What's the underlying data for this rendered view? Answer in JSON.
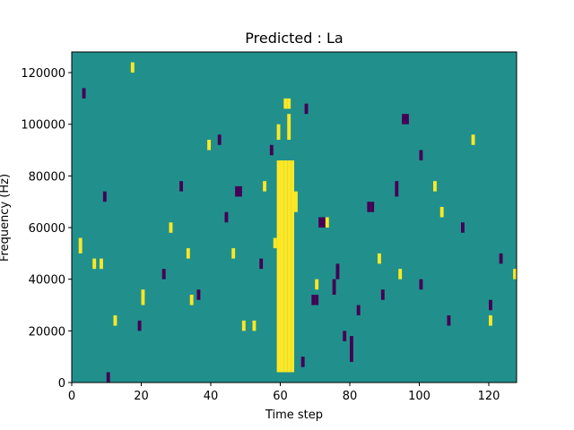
{
  "chart_data": {
    "type": "heatmap",
    "title": "Predicted : La",
    "xlabel": "Time step",
    "ylabel": "Frequency (Hz)",
    "xlim": [
      0,
      128
    ],
    "ylim": [
      0,
      128000
    ],
    "x_ticks": [
      0,
      20,
      40,
      60,
      80,
      100,
      120
    ],
    "y_ticks": [
      0,
      20000,
      40000,
      60000,
      80000,
      100000,
      120000
    ],
    "grid": false,
    "legend": "none",
    "colors": {
      "background": "#21908d",
      "low": "#440154",
      "high": "#fde725"
    },
    "cell": {
      "dx": 1,
      "dy": 2000
    },
    "high_cells": [
      [
        59,
        4000,
        86000
      ],
      [
        60,
        4000,
        86000
      ],
      [
        61,
        4000,
        86000
      ],
      [
        62,
        4000,
        86000
      ],
      [
        63,
        4000,
        86000
      ],
      [
        61,
        106000,
        110000
      ],
      [
        62,
        106000,
        110000
      ],
      [
        62,
        94000,
        104000
      ],
      [
        59,
        94000,
        100000
      ],
      [
        64,
        66000,
        74000
      ],
      [
        17,
        120000,
        124000
      ],
      [
        2,
        50000,
        56000
      ],
      [
        12,
        22000,
        26000
      ],
      [
        20,
        30000,
        36000
      ],
      [
        34,
        30000,
        34000
      ],
      [
        46,
        48000,
        52000
      ],
      [
        52,
        20000,
        24000
      ],
      [
        58,
        52000,
        56000
      ],
      [
        94,
        40000,
        44000
      ],
      [
        104,
        74000,
        78000
      ],
      [
        115,
        92000,
        96000
      ],
      [
        120,
        22000,
        26000
      ],
      [
        127,
        40000,
        44000
      ],
      [
        8,
        44000,
        48000
      ],
      [
        6,
        44000,
        48000
      ],
      [
        39,
        90000,
        94000
      ],
      [
        28,
        58000,
        62000
      ],
      [
        33,
        48000,
        52000
      ],
      [
        73,
        60000,
        64000
      ],
      [
        70,
        36000,
        40000
      ],
      [
        88,
        46000,
        50000
      ],
      [
        106,
        64000,
        68000
      ],
      [
        55,
        74000,
        78000
      ],
      [
        49,
        20000,
        24000
      ]
    ],
    "low_cells": [
      [
        19,
        20000,
        24000
      ],
      [
        44,
        62000,
        66000
      ],
      [
        47,
        72000,
        76000
      ],
      [
        48,
        72000,
        76000
      ],
      [
        69,
        30000,
        34000
      ],
      [
        70,
        30000,
        34000
      ],
      [
        71,
        60000,
        64000
      ],
      [
        72,
        60000,
        64000
      ],
      [
        75,
        34000,
        40000
      ],
      [
        76,
        40000,
        46000
      ],
      [
        85,
        66000,
        70000
      ],
      [
        86,
        66000,
        70000
      ],
      [
        95,
        100000,
        104000
      ],
      [
        96,
        100000,
        104000
      ],
      [
        93,
        72000,
        78000
      ],
      [
        78,
        16000,
        20000
      ],
      [
        80,
        8000,
        18000
      ],
      [
        82,
        26000,
        30000
      ],
      [
        89,
        32000,
        36000
      ],
      [
        100,
        36000,
        40000
      ],
      [
        108,
        22000,
        26000
      ],
      [
        120,
        28000,
        32000
      ],
      [
        123,
        46000,
        50000
      ],
      [
        10,
        0,
        4000
      ],
      [
        3,
        110000,
        114000
      ],
      [
        42,
        92000,
        96000
      ],
      [
        36,
        32000,
        36000
      ],
      [
        67,
        104000,
        108000
      ],
      [
        112,
        58000,
        62000
      ],
      [
        57,
        88000,
        92000
      ],
      [
        26,
        40000,
        44000
      ],
      [
        31,
        74000,
        78000
      ],
      [
        9,
        70000,
        74000
      ],
      [
        66,
        6000,
        10000
      ],
      [
        100,
        86000,
        90000
      ],
      [
        54,
        44000,
        48000
      ]
    ]
  }
}
